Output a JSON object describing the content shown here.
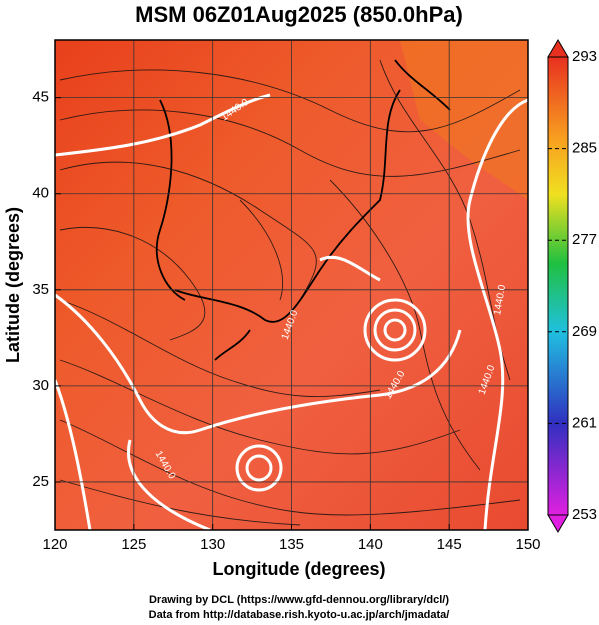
{
  "title": "MSM 06Z01Aug2025 (850.0hPa)",
  "x_axis": {
    "label": "Longitude (degrees)",
    "lim": [
      120,
      150
    ],
    "ticks": [
      120,
      125,
      130,
      135,
      140,
      145,
      150
    ]
  },
  "y_axis": {
    "label": "Latitude  (degrees)",
    "lim": [
      22.5,
      48
    ],
    "ticks": [
      25,
      30,
      35,
      40,
      45
    ]
  },
  "colorbar": {
    "lim": [
      253,
      293
    ],
    "ticks": [
      253,
      261,
      269,
      277,
      285,
      293
    ]
  },
  "contour_labels": [
    "1440.0",
    "1440.0",
    "1440.0",
    "1440.0",
    "1440.0",
    "1440.0"
  ],
  "footer": [
    "Drawing by DCL (https://www.gfd-dennou.org/library/dcl/)",
    "Data from http://database.rish.kyoto-u.ac.jp/arch/jmadata/"
  ]
}
